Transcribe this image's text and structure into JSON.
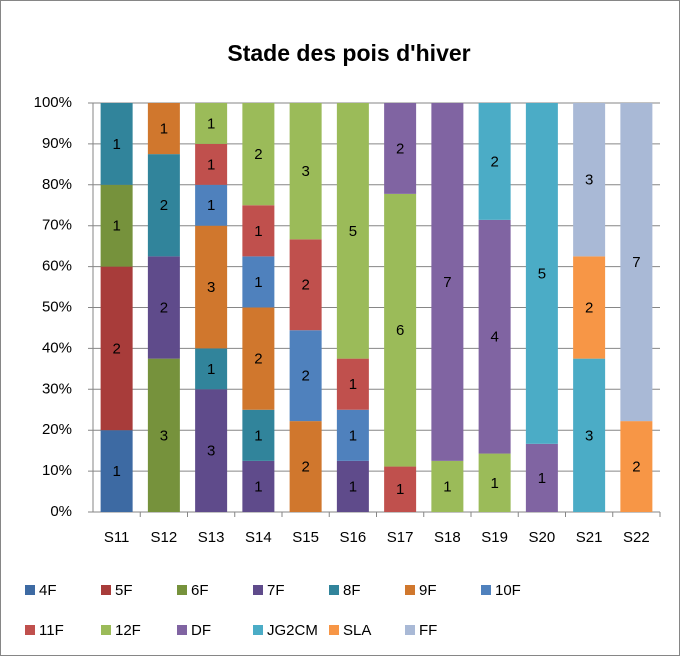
{
  "chart_data": {
    "type": "stacked_percent_bar",
    "title": "Stade des pois d'hiver",
    "categories": [
      "S11",
      "S12",
      "S13",
      "S14",
      "S15",
      "S16",
      "S17",
      "S18",
      "S19",
      "S20",
      "S21",
      "S22"
    ],
    "series": [
      {
        "name": "4F",
        "color": "#3d6aa3",
        "values": [
          1,
          null,
          null,
          null,
          null,
          null,
          null,
          null,
          null,
          null,
          null,
          null
        ]
      },
      {
        "name": "5F",
        "color": "#a83c3a",
        "values": [
          2,
          null,
          null,
          null,
          null,
          null,
          null,
          null,
          null,
          null,
          null,
          null
        ]
      },
      {
        "name": "6F",
        "color": "#76923c",
        "values": [
          1,
          3,
          null,
          null,
          null,
          null,
          null,
          null,
          null,
          null,
          null,
          null
        ]
      },
      {
        "name": "7F",
        "color": "#5f4b8b",
        "values": [
          null,
          2,
          3,
          1,
          null,
          1,
          null,
          null,
          null,
          null,
          null,
          null
        ]
      },
      {
        "name": "8F",
        "color": "#31849b",
        "values": [
          1,
          2,
          1,
          1,
          null,
          null,
          null,
          null,
          null,
          null,
          null,
          null
        ]
      },
      {
        "name": "9F",
        "color": "#d0772d",
        "values": [
          null,
          1,
          3,
          2,
          2,
          null,
          null,
          null,
          null,
          null,
          null,
          null
        ]
      },
      {
        "name": "10F",
        "color": "#4f81bd",
        "values": [
          null,
          null,
          1,
          1,
          2,
          1,
          null,
          null,
          null,
          null,
          null,
          null
        ]
      },
      {
        "name": "11F",
        "color": "#c0504d",
        "values": [
          null,
          null,
          1,
          1,
          2,
          1,
          1,
          null,
          null,
          null,
          null,
          null
        ]
      },
      {
        "name": "12F",
        "color": "#9bbb59",
        "values": [
          null,
          null,
          1,
          2,
          3,
          5,
          6,
          1,
          1,
          null,
          null,
          null
        ]
      },
      {
        "name": "DF",
        "color": "#8064a2",
        "values": [
          null,
          null,
          null,
          null,
          null,
          null,
          2,
          7,
          4,
          1,
          null,
          null
        ]
      },
      {
        "name": "JG2CM",
        "color": "#4bacc6",
        "values": [
          null,
          null,
          null,
          null,
          null,
          null,
          null,
          null,
          2,
          5,
          3,
          null
        ]
      },
      {
        "name": "SLA",
        "color": "#f79646",
        "values": [
          null,
          null,
          null,
          null,
          null,
          null,
          null,
          null,
          null,
          null,
          2,
          2
        ]
      },
      {
        "name": "FF",
        "color": "#a9b9d6",
        "values": [
          null,
          null,
          null,
          null,
          null,
          null,
          null,
          null,
          null,
          null,
          3,
          7
        ]
      }
    ],
    "ylim": [
      0,
      100
    ],
    "yticks": [
      {
        "value": 0,
        "label": "0%"
      },
      {
        "value": 10,
        "label": "10%"
      },
      {
        "value": 20,
        "label": "20%"
      },
      {
        "value": 30,
        "label": "30%"
      },
      {
        "value": 40,
        "label": "40%"
      },
      {
        "value": 50,
        "label": "50%"
      },
      {
        "value": 60,
        "label": "60%"
      },
      {
        "value": 70,
        "label": "70%"
      },
      {
        "value": 80,
        "label": "80%"
      },
      {
        "value": 90,
        "label": "90%"
      },
      {
        "value": 100,
        "label": "100%"
      }
    ],
    "grid": true,
    "legend": "bottom"
  }
}
